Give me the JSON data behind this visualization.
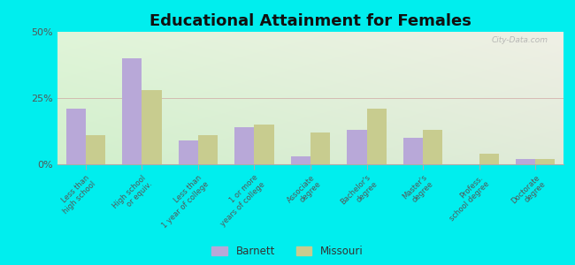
{
  "title": "Educational Attainment for Females",
  "categories": [
    "Less than\nhigh school",
    "High school\nor equiv.",
    "Less than\n1 year of college",
    "1 or more\nyears of college",
    "Associate\ndegree",
    "Bachelor's\ndegree",
    "Master's\ndegree",
    "Profess.\nschool degree",
    "Doctorate\ndegree"
  ],
  "barnett": [
    21,
    40,
    9,
    14,
    3,
    13,
    10,
    0,
    2
  ],
  "missouri": [
    11,
    28,
    11,
    15,
    12,
    21,
    13,
    4,
    2
  ],
  "barnett_color": "#b8a8d8",
  "missouri_color": "#c8cc8f",
  "background_color": "#00eeee",
  "plot_bg_topleft": "#d8edd8",
  "plot_bg_topright": "#f0f0e8",
  "plot_bg_bottom": "#e8f0d8",
  "ylim": [
    0,
    50
  ],
  "yticks": [
    0,
    25,
    50
  ],
  "ytick_labels": [
    "0%",
    "25%",
    "50%"
  ],
  "bar_width": 0.35,
  "title_fontsize": 13,
  "tick_fontsize": 6.0,
  "legend_labels": [
    "Barnett",
    "Missouri"
  ],
  "watermark": "City-Data.com"
}
